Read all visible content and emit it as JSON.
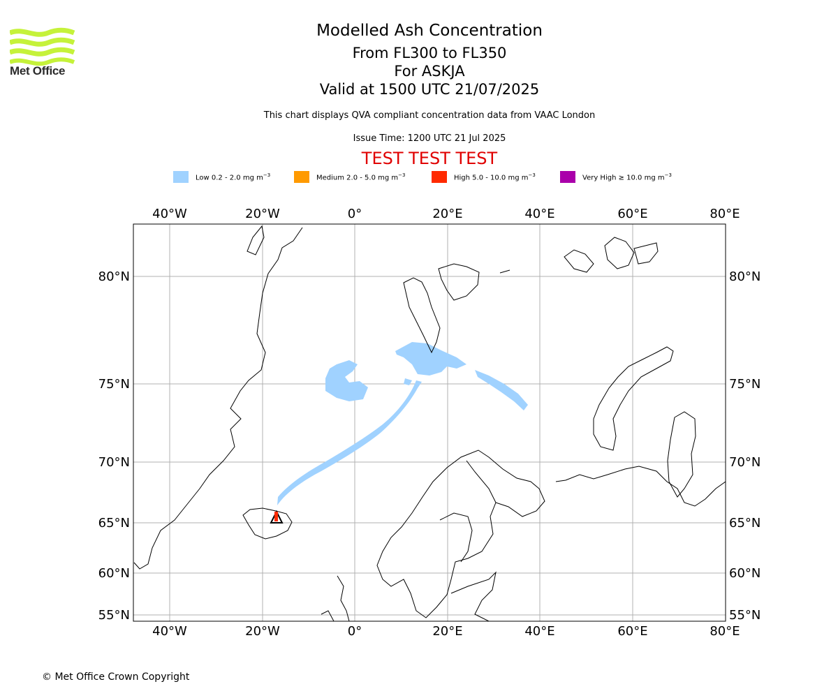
{
  "header": {
    "logo_text": "Met Office",
    "title": "Modelled Ash Concentration",
    "levels": "From FL300 to FL350",
    "volcano": "For ASKJA",
    "valid": "Valid at 1500 UTC 21/07/2025",
    "note": "This chart displays QVA compliant concentration data from VAAC London",
    "issue": "Issue Time: 1200 UTC 21 Jul 2025",
    "test_banner": "TEST TEST TEST"
  },
  "legend": [
    {
      "label": "Low 0.2 - 2.0 mg m",
      "color": "#a0d2ff"
    },
    {
      "label": "Medium 2.0 - 5.0 mg m",
      "color": "#ff9a00"
    },
    {
      "label": "High 5.0 - 10.0 mg m",
      "color": "#ff2a00"
    },
    {
      "label": "Very High ≥ 10.0 mg m",
      "color": "#aa00aa"
    }
  ],
  "legend_unit_exp": "−3",
  "map": {
    "lon_labels": [
      "40°W",
      "20°W",
      "0°",
      "20°E",
      "40°E",
      "60°E",
      "80°E"
    ],
    "lat_labels": [
      "80°N",
      "75°N",
      "70°N",
      "65°N",
      "60°N",
      "55°N"
    ],
    "volcano_marker": "askja-triangle"
  },
  "footer": {
    "copyright": "© Met Office Crown Copyright"
  }
}
